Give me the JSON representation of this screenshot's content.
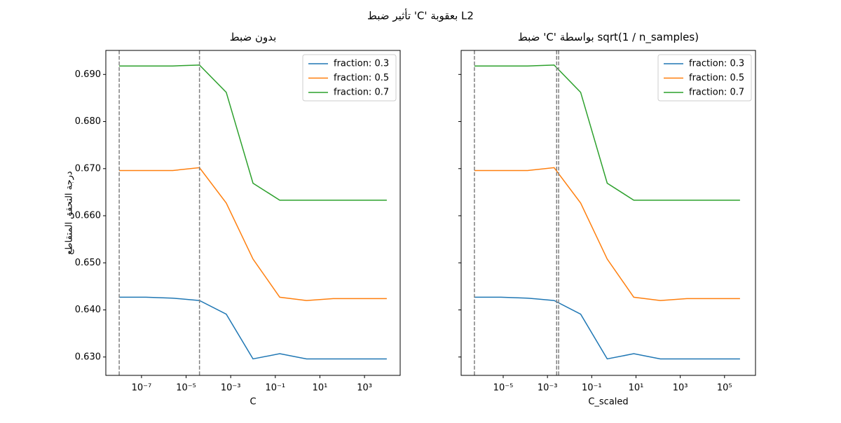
{
  "figure_title": "تأثير ضبط 'C' بعقوبة L2",
  "chart_data": [
    {
      "type": "line",
      "title": "بدون ضبط",
      "xlabel": "C",
      "ylabel": "درجة التحقق المتقاطع",
      "xscale": "log",
      "legend": "upper right",
      "show_ytick_labels": true,
      "x": [
        1e-08,
        1.58e-07,
        2.51e-06,
        3.98e-05,
        0.000631,
        0.01,
        0.158,
        2.51,
        39.8,
        631,
        10000
      ],
      "series": [
        {
          "name": "fraction: 0.3",
          "color": "#1f77b4",
          "values": [
            0.6427,
            0.6427,
            0.6425,
            0.642,
            0.6391,
            0.6296,
            0.6307,
            0.6296,
            0.6296,
            0.6296,
            0.6296
          ]
        },
        {
          "name": "fraction: 0.5",
          "color": "#ff7f0e",
          "values": [
            0.6696,
            0.6696,
            0.6696,
            0.6702,
            0.6627,
            0.6508,
            0.6427,
            0.642,
            0.6424,
            0.6424,
            0.6424
          ]
        },
        {
          "name": "fraction: 0.7",
          "color": "#2ca02c",
          "values": [
            0.6918,
            0.6918,
            0.6918,
            0.692,
            0.6862,
            0.6669,
            0.6633,
            0.6633,
            0.6633,
            0.6633,
            0.6633
          ]
        }
      ],
      "vlines": [
        1e-08,
        3.98e-05
      ],
      "vline_color": "#808080",
      "xlim": [
        2.51e-09,
        39800
      ],
      "xticks": [
        {
          "value": 1e-07,
          "label": "10⁻⁷"
        },
        {
          "value": 1e-05,
          "label": "10⁻⁵"
        },
        {
          "value": 0.001,
          "label": "10⁻³"
        },
        {
          "value": 0.1,
          "label": "10⁻¹"
        },
        {
          "value": 10,
          "label": "10¹"
        },
        {
          "value": 1000,
          "label": "10³"
        }
      ],
      "ylim": [
        0.6261,
        0.6951
      ],
      "yticks": [
        {
          "value": 0.63,
          "label": "0.630"
        },
        {
          "value": 0.64,
          "label": "0.640"
        },
        {
          "value": 0.65,
          "label": "0.650"
        },
        {
          "value": 0.66,
          "label": "0.660"
        },
        {
          "value": 0.67,
          "label": "0.670"
        },
        {
          "value": 0.68,
          "label": "0.680"
        },
        {
          "value": 0.69,
          "label": "0.690"
        }
      ]
    },
    {
      "type": "line",
      "title": "ضبط 'C' بواسطة sqrt(1 / n_samples)",
      "xlabel": "C_scaled",
      "xscale": "log",
      "legend": "upper right",
      "show_ytick_labels": false,
      "x": [
        5.01e-07,
        7.94e-06,
        0.000126,
        0.002,
        0.0316,
        0.501,
        7.94,
        126,
        2000,
        31600,
        501000
      ],
      "series": [
        {
          "name": "fraction: 0.3",
          "color": "#1f77b4",
          "values": [
            0.6427,
            0.6427,
            0.6425,
            0.642,
            0.6391,
            0.6296,
            0.6307,
            0.6296,
            0.6296,
            0.6296,
            0.6296
          ]
        },
        {
          "name": "fraction: 0.5",
          "color": "#ff7f0e",
          "values": [
            0.6696,
            0.6696,
            0.6696,
            0.6702,
            0.6627,
            0.6508,
            0.6427,
            0.642,
            0.6424,
            0.6424,
            0.6424
          ]
        },
        {
          "name": "fraction: 0.7",
          "color": "#2ca02c",
          "values": [
            0.6918,
            0.6918,
            0.6918,
            0.692,
            0.6862,
            0.6669,
            0.6633,
            0.6633,
            0.6633,
            0.6633,
            0.6633
          ]
        }
      ],
      "vlines": [
        5.01e-07,
        0.0026,
        0.0032
      ],
      "vline_color": "#808080",
      "xlim": [
        1.26e-07,
        2510000
      ],
      "xticks": [
        {
          "value": 1e-05,
          "label": "10⁻⁵"
        },
        {
          "value": 0.001,
          "label": "10⁻³"
        },
        {
          "value": 0.1,
          "label": "10⁻¹"
        },
        {
          "value": 10,
          "label": "10¹"
        },
        {
          "value": 1000,
          "label": "10³"
        },
        {
          "value": 100000,
          "label": "10⁵"
        }
      ],
      "ylim": [
        0.6261,
        0.6951
      ],
      "yticks": [
        0.63,
        0.64,
        0.65,
        0.66,
        0.67,
        0.68,
        0.69
      ]
    }
  ]
}
